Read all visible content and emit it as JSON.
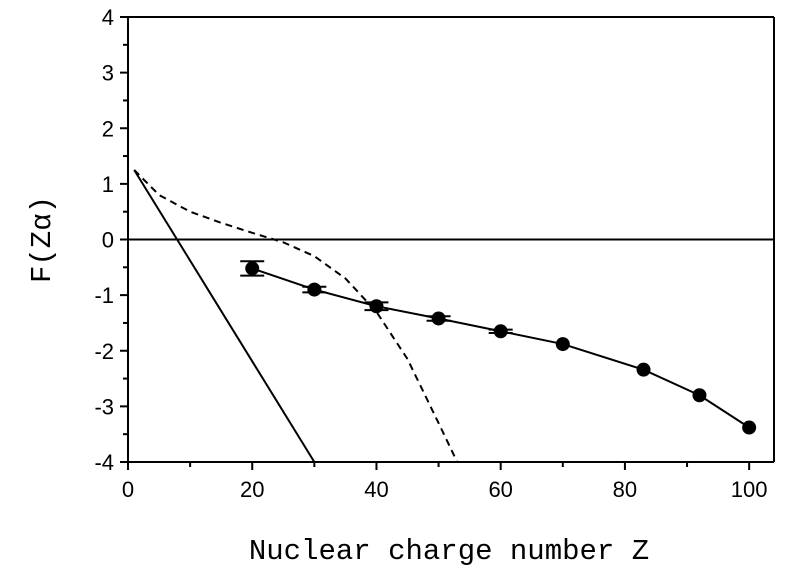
{
  "chart_data": {
    "type": "scatter",
    "title": "",
    "xlabel": "Nuclear charge number Z",
    "ylabel": "F(Zα)",
    "xlim": [
      0,
      104
    ],
    "ylim": [
      -4,
      4
    ],
    "x_ticks": [
      0,
      20,
      40,
      60,
      80,
      100
    ],
    "y_ticks": [
      -4,
      -3,
      -2,
      -1,
      0,
      1,
      2,
      3,
      4
    ],
    "grid": false,
    "legend": "none",
    "zero_line": 0,
    "series": [
      {
        "type": "scatter-errorbar",
        "style": "filled circles with solid connecting curve",
        "x": [
          20,
          30,
          40,
          50,
          60,
          70,
          83,
          92,
          100
        ],
        "y": [
          -0.52,
          -0.9,
          -1.2,
          -1.42,
          -1.65,
          -1.88,
          -2.34,
          -2.8,
          -3.38
        ],
        "error": [
          0.13,
          0.05,
          0.07,
          0.04,
          0.03,
          0,
          0,
          0,
          0
        ]
      },
      {
        "type": "line",
        "style": "solid",
        "x": [
          1,
          30
        ],
        "y": [
          1.25,
          -4.0
        ]
      },
      {
        "type": "line",
        "style": "dashed",
        "x": [
          1,
          5,
          10,
          15,
          20,
          25,
          30,
          35,
          40,
          45,
          50,
          53
        ],
        "y": [
          1.25,
          0.8,
          0.5,
          0.3,
          0.12,
          -0.05,
          -0.3,
          -0.7,
          -1.3,
          -2.15,
          -3.3,
          -4.0
        ]
      }
    ]
  }
}
